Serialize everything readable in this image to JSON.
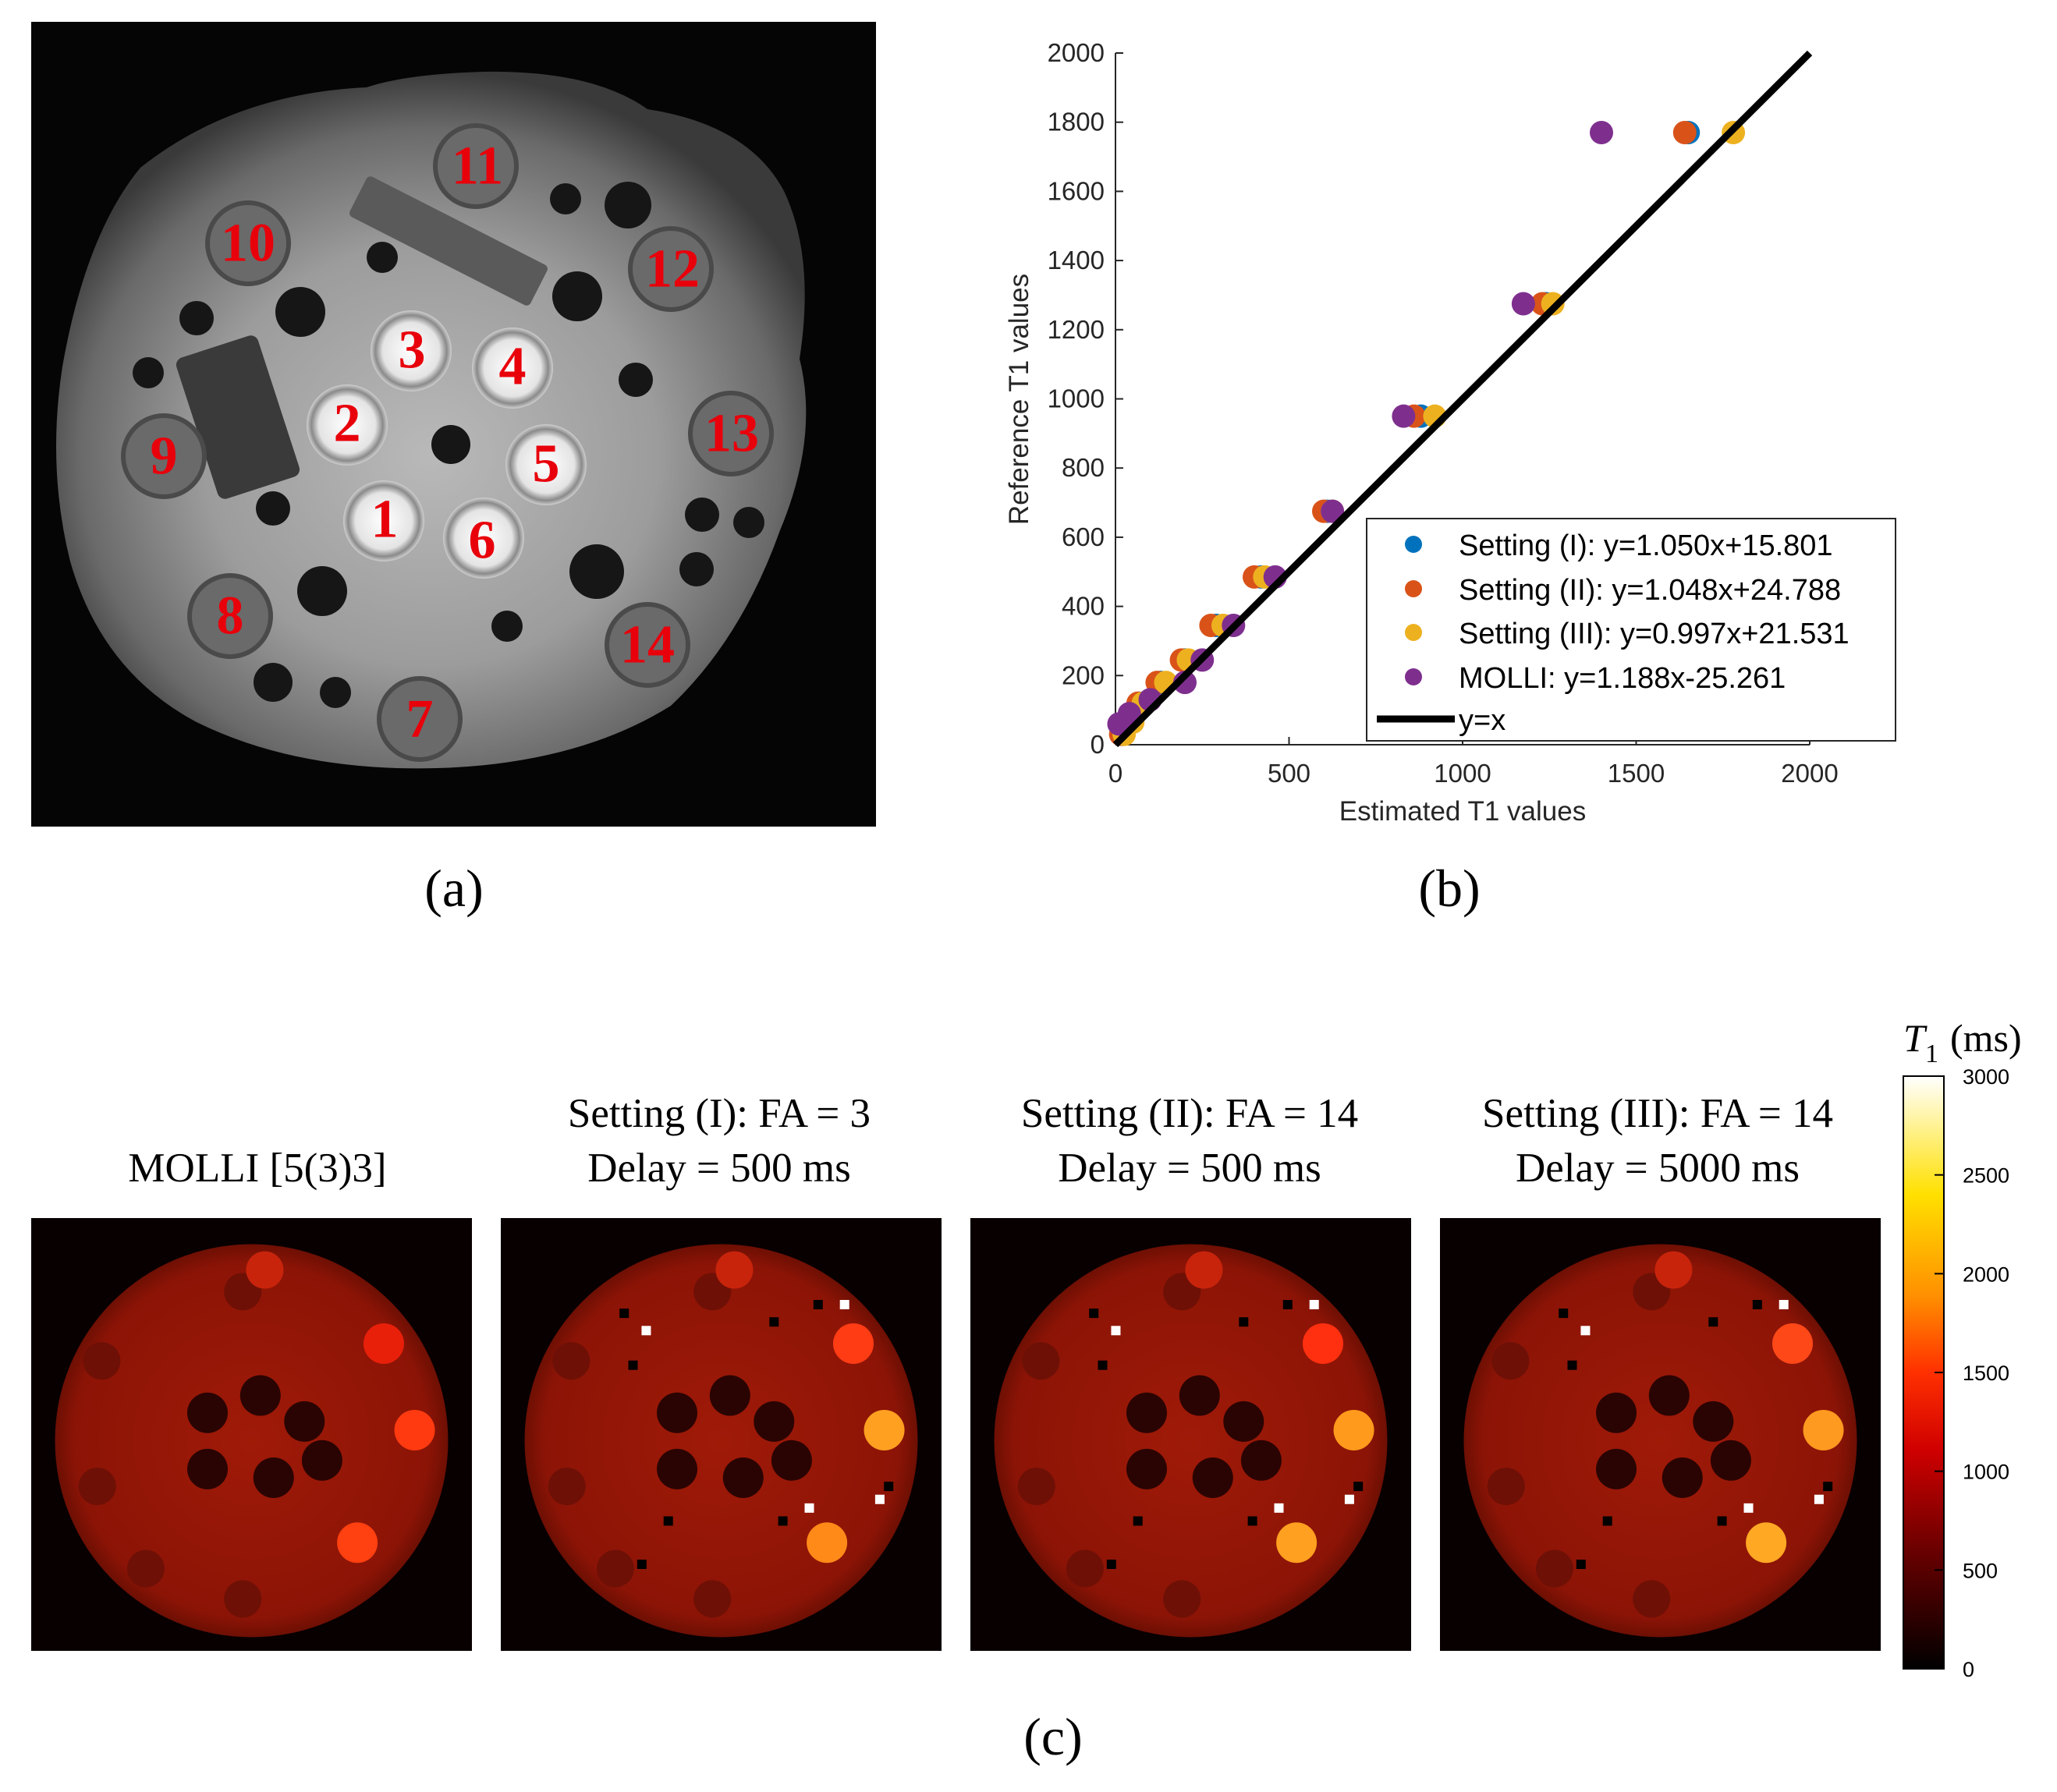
{
  "panel_labels": {
    "a": "(a)",
    "b": "(b)",
    "c": "(c)"
  },
  "phantom": {
    "vial_labels": [
      "1",
      "2",
      "3",
      "4",
      "5",
      "6",
      "7",
      "8",
      "9",
      "10",
      "11",
      "12",
      "13",
      "14"
    ]
  },
  "chart_data": {
    "type": "scatter",
    "title": "",
    "xlabel": "Estimated T1 values",
    "ylabel": "Reference T1 values",
    "xlim": [
      0,
      2000
    ],
    "ylim": [
      0,
      2000
    ],
    "xticks": [
      0,
      500,
      1000,
      1500,
      2000
    ],
    "yticks": [
      0,
      200,
      400,
      600,
      800,
      1000,
      1200,
      1400,
      1600,
      1800,
      2000
    ],
    "legend_position": "bottom-right",
    "reference_line": {
      "name": "y=x",
      "label": "y=x",
      "x": [
        0,
        2000
      ],
      "y": [
        0,
        2000
      ],
      "color": "#000000"
    },
    "series": [
      {
        "name": "Setting (I)",
        "label": "Setting (I): y=1.050x+15.801",
        "color": "#0072BD",
        "x": [
          20,
          40,
          70,
          130,
          200,
          290,
          420,
          610,
          880,
          1240,
          1650
        ],
        "y": [
          30,
          65,
          120,
          180,
          245,
          345,
          485,
          675,
          950,
          1275,
          1770
        ]
      },
      {
        "name": "Setting (II)",
        "label": "Setting (II): y=1.048x+24.788",
        "color": "#D95319",
        "x": [
          15,
          35,
          65,
          120,
          190,
          275,
          400,
          600,
          860,
          1230,
          1640
        ],
        "y": [
          30,
          65,
          120,
          180,
          245,
          345,
          485,
          675,
          950,
          1275,
          1770
        ]
      },
      {
        "name": "Setting (III)",
        "label": "Setting (III): y=0.997x+21.531",
        "color": "#EDB120",
        "x": [
          25,
          50,
          80,
          145,
          210,
          310,
          430,
          625,
          920,
          1260,
          1780
        ],
        "y": [
          30,
          65,
          120,
          180,
          245,
          345,
          485,
          675,
          950,
          1275,
          1770
        ]
      },
      {
        "name": "MOLLI",
        "label": "MOLLI: y=1.188x-25.261",
        "color": "#7E2F8E",
        "x": [
          10,
          40,
          100,
          200,
          250,
          340,
          460,
          625,
          830,
          1175,
          1400
        ],
        "y": [
          60,
          90,
          130,
          180,
          245,
          345,
          485,
          675,
          950,
          1275,
          1770
        ]
      }
    ]
  },
  "maps": [
    {
      "title_lines": [
        "MOLLI [5(3)3]"
      ]
    },
    {
      "title_lines": [
        "Setting (I): FA = 3",
        "Delay = 500 ms"
      ]
    },
    {
      "title_lines": [
        "Setting (II): FA = 14",
        "Delay = 500 ms"
      ]
    },
    {
      "title_lines": [
        "Setting (III): FA = 14",
        "Delay = 5000 ms"
      ]
    }
  ],
  "colorbar": {
    "title_symbol": "T",
    "title_subscript": "1",
    "title_unit": "(ms)",
    "min": 0,
    "max": 3000,
    "ticks": [
      "0",
      "500",
      "1000",
      "1500",
      "2000",
      "2500",
      "3000"
    ]
  }
}
